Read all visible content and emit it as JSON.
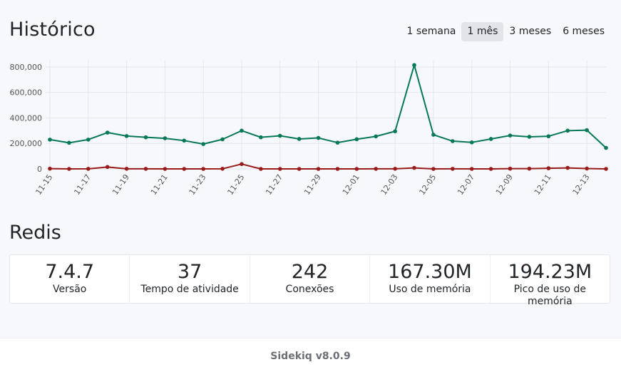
{
  "header": {
    "title": "Histórico",
    "range_tabs": [
      {
        "label": "1 semana",
        "active": false
      },
      {
        "label": "1 mês",
        "active": true
      },
      {
        "label": "3 meses",
        "active": false
      },
      {
        "label": "6 meses",
        "active": false
      }
    ]
  },
  "chart_data": {
    "type": "line",
    "x": [
      "11-15",
      "11-16",
      "11-17",
      "11-18",
      "11-19",
      "11-20",
      "11-21",
      "11-22",
      "11-23",
      "11-24",
      "11-25",
      "11-26",
      "11-27",
      "11-28",
      "11-29",
      "11-30",
      "12-01",
      "12-02",
      "12-03",
      "12-04",
      "12-05",
      "12-06",
      "12-07",
      "12-08",
      "12-09",
      "12-10",
      "12-11",
      "12-12",
      "12-13",
      "12-14"
    ],
    "x_tick_labels": [
      "11-15",
      "11-17",
      "11-19",
      "11-21",
      "11-23",
      "11-25",
      "11-27",
      "11-29",
      "12-01",
      "12-03",
      "12-05",
      "12-07",
      "12-09",
      "12-11",
      "12-13"
    ],
    "series": [
      {
        "color": "#047857",
        "values": [
          230000,
          205000,
          230000,
          285000,
          258000,
          248000,
          240000,
          222000,
          195000,
          232000,
          300000,
          248000,
          260000,
          235000,
          243000,
          206000,
          233000,
          255000,
          295000,
          815000,
          268000,
          218000,
          208000,
          235000,
          262000,
          252000,
          256000,
          300000,
          304000,
          165000
        ]
      },
      {
        "color": "#991b1b",
        "values": [
          2000,
          0,
          500,
          15000,
          1000,
          500,
          0,
          0,
          0,
          1000,
          38000,
          0,
          0,
          0,
          0,
          0,
          0,
          500,
          1000,
          8000,
          0,
          500,
          0,
          0,
          2000,
          2000,
          5000,
          8000,
          3000,
          0
        ]
      }
    ],
    "ylim": [
      0,
      850000
    ],
    "y_ticks": [
      0,
      200000,
      400000,
      600000,
      800000
    ],
    "y_tick_labels": [
      "0",
      "200,000",
      "400,000",
      "600,000",
      "800,000"
    ],
    "grid": true
  },
  "redis": {
    "title": "Redis",
    "stats": [
      {
        "value": "7.4.7",
        "label": "Versão"
      },
      {
        "value": "37",
        "label": "Tempo de atividade"
      },
      {
        "value": "242",
        "label": "Conexões"
      },
      {
        "value": "167.30M",
        "label": "Uso de memória"
      },
      {
        "value": "194.23M",
        "label": "Pico de uso de memória"
      }
    ]
  },
  "footer": {
    "text": "Sidekiq v8.0.9"
  }
}
